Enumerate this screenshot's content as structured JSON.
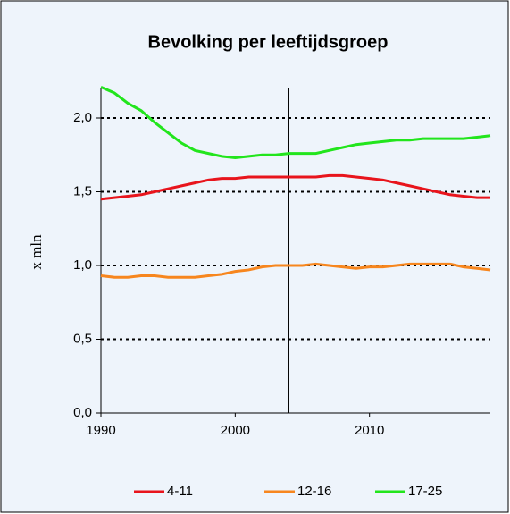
{
  "chart_data": {
    "type": "line",
    "title": "Bevolking per leeftijdsgroep",
    "y_label": "x mln",
    "x": [
      1990,
      1991,
      1992,
      1993,
      1994,
      1995,
      1996,
      1997,
      1998,
      1999,
      2000,
      2001,
      2002,
      2003,
      2004,
      2005,
      2006,
      2007,
      2008,
      2009,
      2010,
      2011,
      2012,
      2013,
      2014,
      2015,
      2016,
      2017,
      2018,
      2019
    ],
    "series": [
      {
        "name": "4-11",
        "color": "#e8141c",
        "values": [
          1.45,
          1.46,
          1.47,
          1.48,
          1.5,
          1.52,
          1.54,
          1.56,
          1.58,
          1.59,
          1.59,
          1.6,
          1.6,
          1.6,
          1.6,
          1.6,
          1.6,
          1.61,
          1.61,
          1.6,
          1.59,
          1.58,
          1.56,
          1.54,
          1.52,
          1.5,
          1.48,
          1.47,
          1.46,
          1.46
        ]
      },
      {
        "name": "12-16",
        "color": "#f7861e",
        "values": [
          0.93,
          0.92,
          0.92,
          0.93,
          0.93,
          0.92,
          0.92,
          0.92,
          0.93,
          0.94,
          0.96,
          0.97,
          0.99,
          1.0,
          1.0,
          1.0,
          1.01,
          1.0,
          0.99,
          0.98,
          0.99,
          0.99,
          1.0,
          1.01,
          1.01,
          1.01,
          1.01,
          0.99,
          0.98,
          0.97
        ]
      },
      {
        "name": "17-25",
        "color": "#22e51c",
        "values": [
          2.21,
          2.17,
          2.1,
          2.05,
          1.97,
          1.9,
          1.83,
          1.78,
          1.76,
          1.74,
          1.73,
          1.74,
          1.75,
          1.75,
          1.76,
          1.76,
          1.76,
          1.78,
          1.8,
          1.82,
          1.83,
          1.84,
          1.85,
          1.85,
          1.86,
          1.86,
          1.86,
          1.86,
          1.87,
          1.88
        ]
      }
    ],
    "xlim": [
      1990,
      2019
    ],
    "xticks": [
      1990,
      2000,
      2010
    ],
    "ylim": [
      0,
      2.2
    ],
    "yticks": [
      {
        "value": 0,
        "label": "0,0"
      },
      {
        "value": 0.5,
        "label": "0,5"
      },
      {
        "value": 1,
        "label": "1,0"
      },
      {
        "value": 1.5,
        "label": "1,5"
      },
      {
        "value": 2,
        "label": "2,0"
      }
    ],
    "vline": 2004,
    "grid": true,
    "legend": "bottom"
  }
}
